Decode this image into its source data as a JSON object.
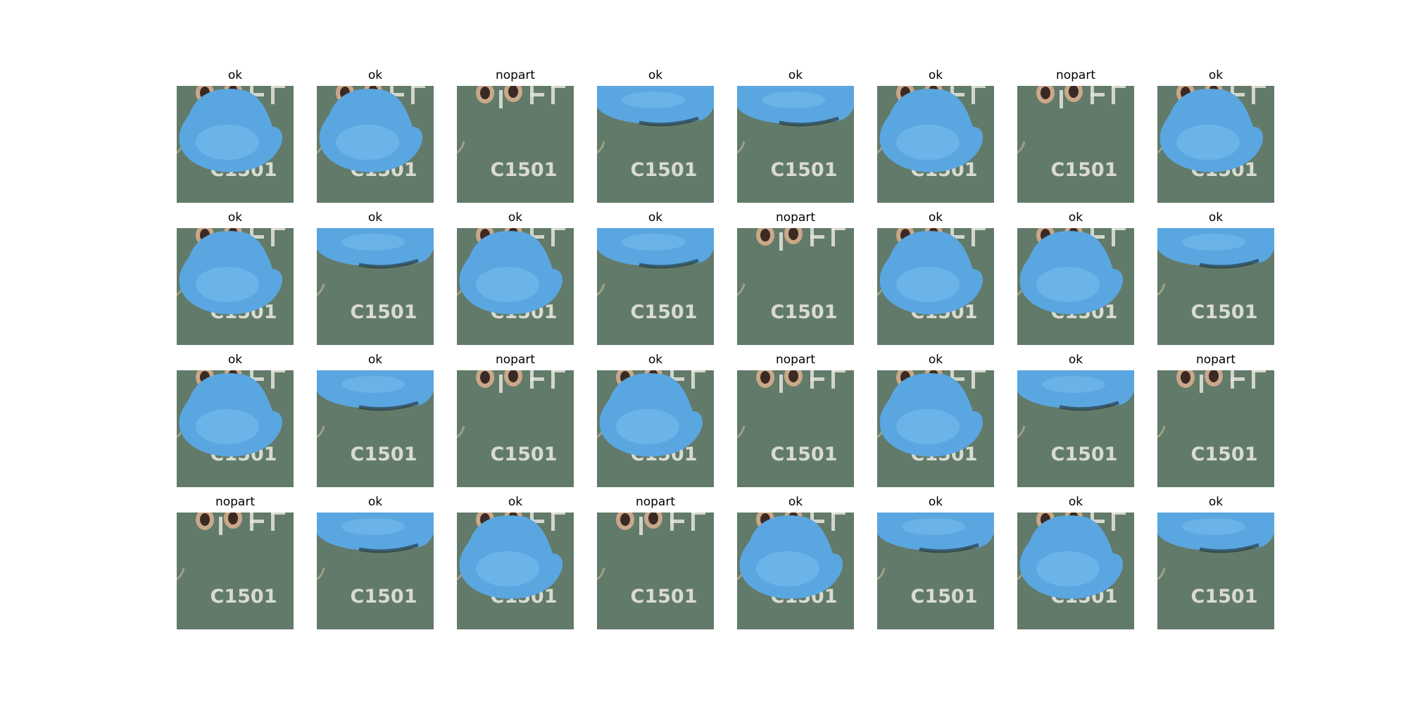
{
  "labels": [
    "ok",
    "ok",
    "nopart",
    "ok",
    "ok",
    "ok",
    "nopart",
    "ok",
    "ok",
    "ok",
    "ok",
    "ok",
    "nopart",
    "ok",
    "ok",
    "ok",
    "ok",
    "ok",
    "nopart",
    "ok",
    "nopart",
    "ok",
    "ok",
    "nopart",
    "nopart",
    "ok",
    "ok",
    "nopart",
    "ok",
    "ok",
    "ok",
    "ok"
  ],
  "board_marking": "C1501",
  "image_kinds": [
    "blob-full",
    "blob-full",
    "empty",
    "blob-top",
    "blob-top",
    "blob-full",
    "empty",
    "blob-full",
    "blob-full",
    "blob-top",
    "blob-full",
    "blob-top",
    "empty",
    "blob-full",
    "blob-full",
    "blob-top",
    "blob-full",
    "blob-top",
    "empty",
    "blob-full",
    "empty",
    "blob-full",
    "blob-top",
    "empty",
    "empty",
    "blob-top",
    "blob-full",
    "empty",
    "blob-full",
    "blob-top",
    "blob-full",
    "blob-top"
  ],
  "colors": {
    "board": "#5f7766",
    "blob": "#5aa6e0",
    "blob_light": "#79bff0",
    "silkscreen": "#e6e6dc",
    "pad_ring": "#c9a889",
    "pad_hole": "#3b2a24"
  }
}
